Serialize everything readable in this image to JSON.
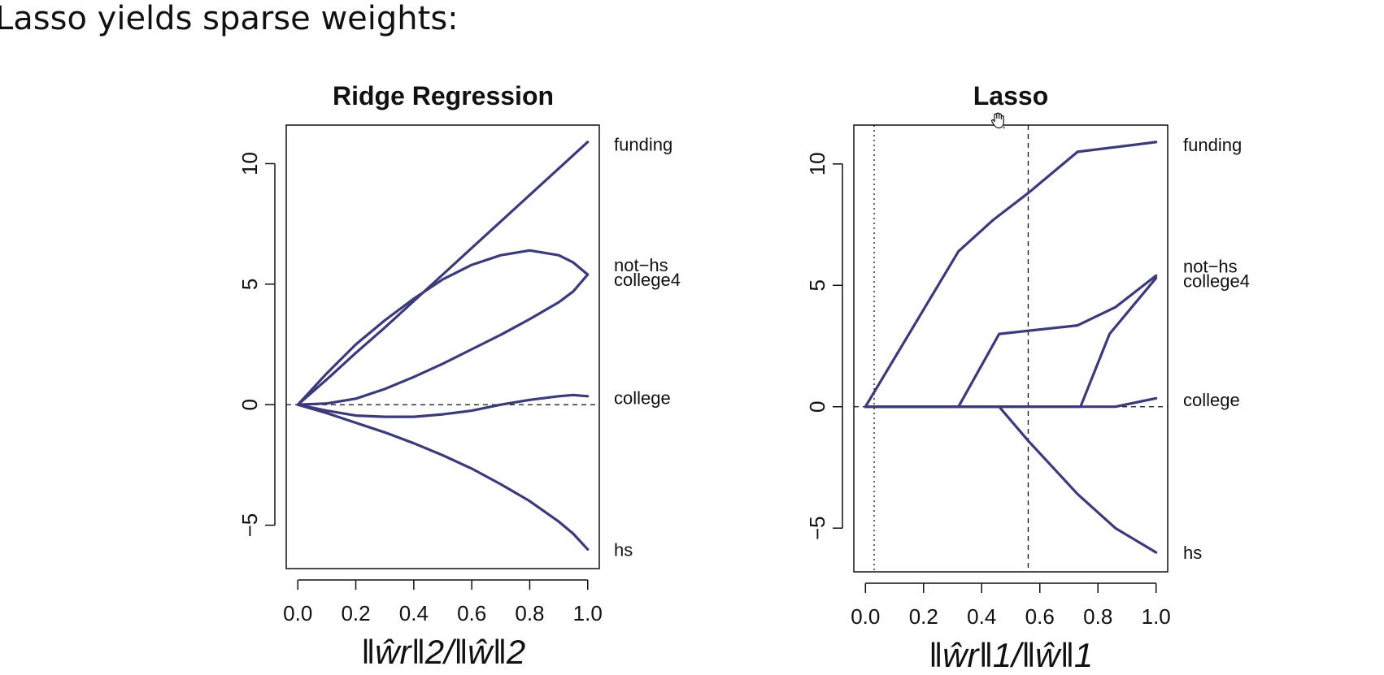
{
  "slide": {
    "heading": "Lasso yields sparse weights:"
  },
  "colors": {
    "series": "#3b3b7c",
    "axis": "#111111",
    "reference_line": "#111111"
  },
  "icons": {
    "cursor": "hand-cursor-icon"
  },
  "chart_data": [
    {
      "type": "line",
      "title": "Ridge Regression",
      "xlabel": "‖ŵr‖2/‖ŵ‖2",
      "ylabel": "",
      "xlim": [
        -0.04,
        1.04
      ],
      "ylim": [
        -6.8,
        11.6
      ],
      "xticks": [
        0.0,
        0.2,
        0.4,
        0.6,
        0.8,
        1.0
      ],
      "xtick_labels": [
        "0.0",
        "0.2",
        "0.4",
        "0.6",
        "0.8",
        "1.0"
      ],
      "yticks": [
        -5,
        0,
        5,
        10
      ],
      "ytick_labels": [
        "−5",
        "0",
        "5",
        "10"
      ],
      "hlines": [
        {
          "y": 0,
          "style": "dashed"
        }
      ],
      "vlines": [],
      "grid": false,
      "legend": "none",
      "series": [
        {
          "label": "funding",
          "label_y": 10.8,
          "x": [
            0,
            0.1,
            0.2,
            0.3,
            0.4,
            0.5,
            0.6,
            0.7,
            0.8,
            0.9,
            1.0
          ],
          "y": [
            0,
            1.05,
            2.15,
            3.2,
            4.3,
            5.4,
            6.5,
            7.6,
            8.7,
            9.8,
            10.9
          ]
        },
        {
          "label": "not−hs",
          "label_y": 5.8,
          "x": [
            0,
            0.1,
            0.2,
            0.3,
            0.4,
            0.5,
            0.6,
            0.7,
            0.8,
            0.9,
            0.95,
            1.0
          ],
          "y": [
            0,
            1.3,
            2.5,
            3.5,
            4.4,
            5.2,
            5.8,
            6.2,
            6.4,
            6.2,
            5.9,
            5.4
          ]
        },
        {
          "label": "college4",
          "label_y": 5.2,
          "x": [
            0,
            0.1,
            0.2,
            0.3,
            0.4,
            0.5,
            0.6,
            0.7,
            0.8,
            0.9,
            0.95,
            1.0
          ],
          "y": [
            0,
            0.05,
            0.25,
            0.65,
            1.15,
            1.7,
            2.3,
            2.9,
            3.55,
            4.25,
            4.7,
            5.4
          ]
        },
        {
          "label": "college",
          "label_y": 0.3,
          "x": [
            0,
            0.1,
            0.2,
            0.3,
            0.4,
            0.5,
            0.6,
            0.7,
            0.8,
            0.9,
            0.95,
            1.0
          ],
          "y": [
            0,
            -0.25,
            -0.45,
            -0.5,
            -0.5,
            -0.4,
            -0.25,
            0.0,
            0.2,
            0.35,
            0.4,
            0.35
          ]
        },
        {
          "label": "hs",
          "label_y": -6.0,
          "x": [
            0,
            0.1,
            0.2,
            0.3,
            0.4,
            0.5,
            0.6,
            0.7,
            0.8,
            0.9,
            0.95,
            1.0
          ],
          "y": [
            0,
            -0.35,
            -0.75,
            -1.15,
            -1.6,
            -2.1,
            -2.65,
            -3.3,
            -4.0,
            -4.85,
            -5.35,
            -6.0
          ]
        }
      ]
    },
    {
      "type": "line",
      "title": "Lasso",
      "xlabel": "‖ŵr‖1/‖ŵ‖1",
      "ylabel": "",
      "xlim": [
        -0.04,
        1.04
      ],
      "ylim": [
        -6.8,
        11.6
      ],
      "xticks": [
        0.0,
        0.2,
        0.4,
        0.6,
        0.8,
        1.0
      ],
      "xtick_labels": [
        "0.0",
        "0.2",
        "0.4",
        "0.6",
        "0.8",
        "1.0"
      ],
      "yticks": [
        -5,
        0,
        5,
        10
      ],
      "ytick_labels": [
        "−5",
        "0",
        "5",
        "10"
      ],
      "hlines": [
        {
          "y": 0,
          "style": "dashed"
        }
      ],
      "vlines": [
        {
          "x": 0.03,
          "style": "dotted"
        },
        {
          "x": 0.56,
          "style": "dashed"
        }
      ],
      "grid": false,
      "legend": "none",
      "series": [
        {
          "label": "funding",
          "label_y": 10.8,
          "x": [
            0,
            0.32,
            0.44,
            0.56,
            0.73,
            1.0
          ],
          "y": [
            0,
            6.4,
            7.7,
            8.8,
            10.5,
            10.9
          ]
        },
        {
          "label": "not−hs",
          "label_y": 5.8,
          "x": [
            0,
            0.32,
            0.46,
            0.73,
            0.86,
            1.0
          ],
          "y": [
            0,
            0,
            3.0,
            3.35,
            4.1,
            5.4
          ]
        },
        {
          "label": "college4",
          "label_y": 5.2,
          "x": [
            0,
            0.74,
            0.84,
            1.0
          ],
          "y": [
            0,
            0,
            3.0,
            5.3
          ]
        },
        {
          "label": "college",
          "label_y": 0.3,
          "x": [
            0,
            0.86,
            1.0
          ],
          "y": [
            0,
            0,
            0.35
          ]
        },
        {
          "label": "hs",
          "label_y": -6.0,
          "x": [
            0,
            0.46,
            0.56,
            0.73,
            0.86,
            1.0
          ],
          "y": [
            0,
            0,
            -1.4,
            -3.6,
            -5.0,
            -6.0
          ]
        }
      ]
    }
  ]
}
